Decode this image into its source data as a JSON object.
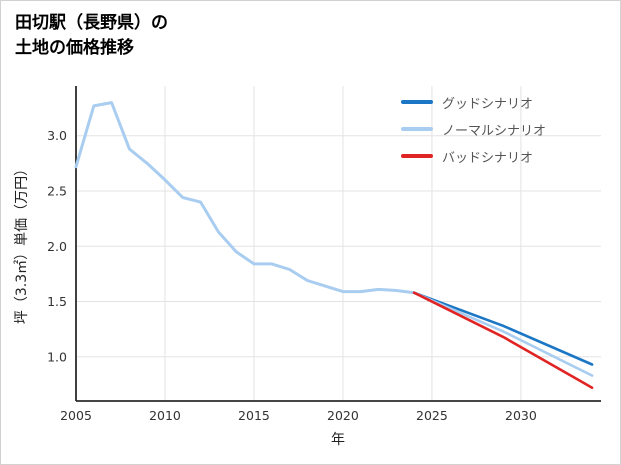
{
  "chart_data": {
    "type": "line",
    "title": "田切駅（長野県）の土地の価格推移",
    "title_lines": [
      "田切駅（長野県）の",
      "土地の価格推移"
    ],
    "xlabel": "年",
    "ylabel": "坪（3.3㎡）単価（万円）",
    "xlim": [
      2005,
      2034.5
    ],
    "ylim": [
      0.6,
      3.45
    ],
    "xticks": [
      2005,
      2010,
      2015,
      2020,
      2025,
      2030
    ],
    "yticks": [
      1.0,
      1.5,
      2.0,
      2.5,
      3.0
    ],
    "grid": true,
    "grid_color": "#e3e3e3",
    "axis_color": "#2b2b2b",
    "tick_color": "#333333",
    "legend_position": "top-right",
    "series": [
      {
        "id": "historical",
        "name": "",
        "color": "#a9cdf0",
        "width": 3,
        "x": [
          2005,
          2006,
          2007,
          2008,
          2009,
          2010,
          2011,
          2012,
          2013,
          2014,
          2015,
          2016,
          2017,
          2018,
          2019,
          2020,
          2021,
          2022,
          2023,
          2024
        ],
        "y": [
          2.72,
          3.27,
          3.3,
          2.88,
          2.75,
          2.6,
          2.44,
          2.4,
          2.13,
          1.95,
          1.84,
          1.84,
          1.79,
          1.69,
          1.64,
          1.59,
          1.59,
          1.61,
          1.6,
          1.58
        ]
      },
      {
        "id": "good",
        "name": "グッドシナリオ",
        "color": "#1b76c5",
        "width": 2.6,
        "x": [
          2024,
          2029,
          2034
        ],
        "y": [
          1.58,
          1.28,
          0.93
        ]
      },
      {
        "id": "normal",
        "name": "ノーマルシナリオ",
        "color": "#a9cdf0",
        "width": 2.6,
        "x": [
          2024,
          2029,
          2034
        ],
        "y": [
          1.58,
          1.23,
          0.83
        ]
      },
      {
        "id": "bad",
        "name": "バッドシナリオ",
        "color": "#e02424",
        "width": 2.6,
        "x": [
          2024,
          2029,
          2034
        ],
        "y": [
          1.58,
          1.18,
          0.72
        ]
      }
    ]
  }
}
